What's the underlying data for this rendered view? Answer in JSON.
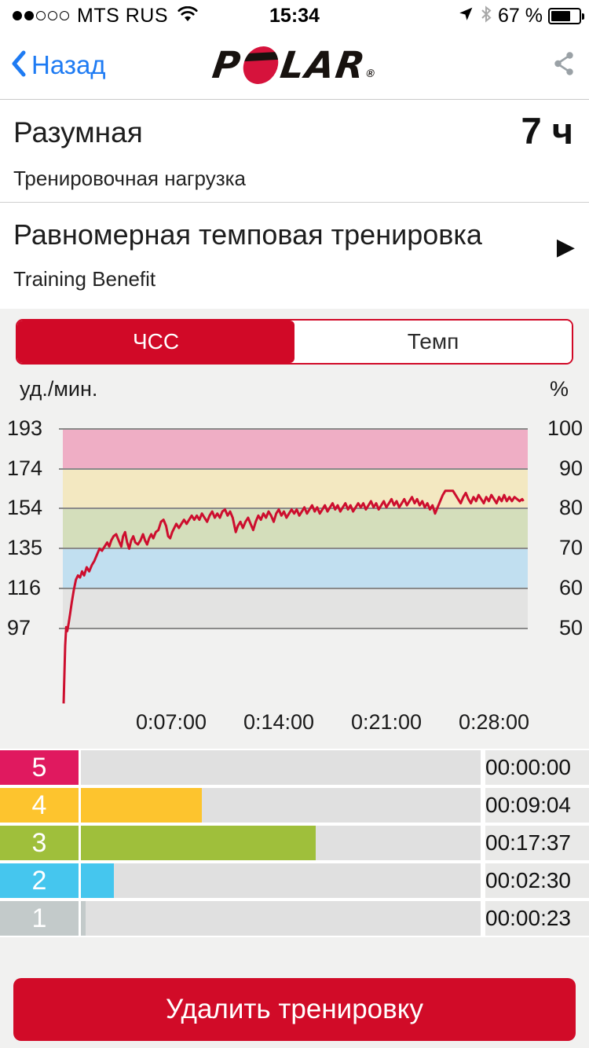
{
  "status_bar": {
    "signal_filled": 2,
    "signal_total": 5,
    "carrier": "MTS RUS",
    "time": "15:34",
    "battery_text": "67 %",
    "battery_level": 0.67
  },
  "nav": {
    "back_label": "Назад",
    "logo_p": "P",
    "logo_lar": "LAR",
    "logo_reg": "®"
  },
  "summary": {
    "title": "Разумная",
    "value": "7 ч",
    "subtitle": "Тренировочная нагрузка"
  },
  "benefit": {
    "title": "Равномерная темповая тренировка",
    "subtitle": "Training Benefit",
    "arrow": "▶"
  },
  "tabs": [
    {
      "label": "ЧСС",
      "selected": true
    },
    {
      "label": "Темп",
      "selected": false
    }
  ],
  "chart_data": {
    "type": "line",
    "title": "Heart rate curve with heart-rate zones",
    "left_axis_unit": "уд./мин.",
    "right_axis_unit": "%",
    "left_ticks": [
      "193",
      "174",
      "154",
      "135",
      "116",
      "97"
    ],
    "right_ticks": [
      "100",
      "90",
      "80",
      "70",
      "60",
      "50"
    ],
    "tick_percents": [
      100,
      90,
      80,
      70,
      60,
      50
    ],
    "x_ticks": [
      "0:07:00",
      "0:14:00",
      "0:21:00",
      "0:28:00"
    ],
    "x_tick_seconds": [
      420,
      840,
      1260,
      1680
    ],
    "x_range_seconds": [
      0,
      1800
    ],
    "max_hr_bpm": 193,
    "grid_color": "#8a8a8a",
    "line_color": "#cd0e2e",
    "zone_bands": [
      {
        "zone": 5,
        "from_pct": 90,
        "to_pct": 100,
        "color": "#efaec5"
      },
      {
        "zone": 4,
        "from_pct": 80,
        "to_pct": 90,
        "color": "#f3e8c1"
      },
      {
        "zone": 3,
        "from_pct": 70,
        "to_pct": 80,
        "color": "#d4debb"
      },
      {
        "zone": 2,
        "from_pct": 60,
        "to_pct": 70,
        "color": "#c1dff0"
      },
      {
        "zone": 1,
        "from_pct": 50,
        "to_pct": 60,
        "color": "#e3e3e2"
      }
    ],
    "series": {
      "name": "heart_rate_bpm",
      "points": [
        [
          0,
          60
        ],
        [
          6,
          88
        ],
        [
          10,
          97
        ],
        [
          14,
          95
        ],
        [
          20,
          99
        ],
        [
          26,
          104
        ],
        [
          32,
          109
        ],
        [
          40,
          115
        ],
        [
          48,
          120
        ],
        [
          56,
          122
        ],
        [
          64,
          121
        ],
        [
          72,
          124
        ],
        [
          80,
          122
        ],
        [
          90,
          126
        ],
        [
          100,
          124
        ],
        [
          110,
          127
        ],
        [
          120,
          129
        ],
        [
          130,
          132
        ],
        [
          140,
          135
        ],
        [
          150,
          134
        ],
        [
          160,
          136
        ],
        [
          170,
          138
        ],
        [
          178,
          136
        ],
        [
          186,
          139
        ],
        [
          195,
          141
        ],
        [
          205,
          142
        ],
        [
          215,
          139
        ],
        [
          225,
          136
        ],
        [
          232,
          141
        ],
        [
          240,
          143
        ],
        [
          248,
          138
        ],
        [
          256,
          135
        ],
        [
          264,
          139
        ],
        [
          272,
          141
        ],
        [
          280,
          138
        ],
        [
          290,
          137
        ],
        [
          300,
          139
        ],
        [
          310,
          142
        ],
        [
          318,
          139
        ],
        [
          326,
          137
        ],
        [
          334,
          140
        ],
        [
          342,
          142
        ],
        [
          350,
          140
        ],
        [
          360,
          143
        ],
        [
          370,
          144
        ],
        [
          380,
          148
        ],
        [
          390,
          149
        ],
        [
          400,
          146
        ],
        [
          408,
          141
        ],
        [
          416,
          140
        ],
        [
          424,
          143
        ],
        [
          432,
          145
        ],
        [
          440,
          147
        ],
        [
          450,
          145
        ],
        [
          460,
          147
        ],
        [
          470,
          149
        ],
        [
          480,
          147
        ],
        [
          490,
          149
        ],
        [
          500,
          151
        ],
        [
          510,
          149
        ],
        [
          520,
          151
        ],
        [
          530,
          149
        ],
        [
          540,
          152
        ],
        [
          550,
          150
        ],
        [
          560,
          148
        ],
        [
          570,
          151
        ],
        [
          580,
          153
        ],
        [
          590,
          150
        ],
        [
          600,
          152
        ],
        [
          610,
          150
        ],
        [
          620,
          153
        ],
        [
          630,
          154
        ],
        [
          640,
          151
        ],
        [
          650,
          153
        ],
        [
          660,
          150
        ],
        [
          672,
          143
        ],
        [
          680,
          146
        ],
        [
          690,
          148
        ],
        [
          700,
          145
        ],
        [
          710,
          148
        ],
        [
          720,
          150
        ],
        [
          730,
          147
        ],
        [
          740,
          144
        ],
        [
          750,
          148
        ],
        [
          760,
          151
        ],
        [
          770,
          149
        ],
        [
          780,
          152
        ],
        [
          790,
          150
        ],
        [
          800,
          153
        ],
        [
          810,
          151
        ],
        [
          820,
          148
        ],
        [
          830,
          152
        ],
        [
          840,
          154
        ],
        [
          850,
          151
        ],
        [
          860,
          153
        ],
        [
          870,
          150
        ],
        [
          880,
          152
        ],
        [
          890,
          154
        ],
        [
          900,
          152
        ],
        [
          910,
          154
        ],
        [
          920,
          151
        ],
        [
          930,
          153
        ],
        [
          940,
          155
        ],
        [
          950,
          152
        ],
        [
          960,
          154
        ],
        [
          970,
          156
        ],
        [
          980,
          153
        ],
        [
          990,
          155
        ],
        [
          1000,
          152
        ],
        [
          1010,
          154
        ],
        [
          1020,
          156
        ],
        [
          1030,
          153
        ],
        [
          1040,
          155
        ],
        [
          1050,
          157
        ],
        [
          1060,
          154
        ],
        [
          1070,
          156
        ],
        [
          1080,
          153
        ],
        [
          1090,
          155
        ],
        [
          1100,
          157
        ],
        [
          1110,
          154
        ],
        [
          1120,
          156
        ],
        [
          1130,
          153
        ],
        [
          1140,
          155
        ],
        [
          1150,
          157
        ],
        [
          1160,
          155
        ],
        [
          1170,
          157
        ],
        [
          1180,
          154
        ],
        [
          1190,
          156
        ],
        [
          1200,
          158
        ],
        [
          1210,
          155
        ],
        [
          1220,
          157
        ],
        [
          1230,
          154
        ],
        [
          1240,
          156
        ],
        [
          1250,
          158
        ],
        [
          1260,
          155
        ],
        [
          1270,
          157
        ],
        [
          1280,
          159
        ],
        [
          1290,
          156
        ],
        [
          1300,
          158
        ],
        [
          1310,
          155
        ],
        [
          1320,
          157
        ],
        [
          1330,
          159
        ],
        [
          1340,
          156
        ],
        [
          1350,
          158
        ],
        [
          1360,
          160
        ],
        [
          1370,
          157
        ],
        [
          1380,
          159
        ],
        [
          1390,
          156
        ],
        [
          1400,
          158
        ],
        [
          1410,
          155
        ],
        [
          1420,
          157
        ],
        [
          1430,
          154
        ],
        [
          1440,
          156
        ],
        [
          1450,
          152
        ],
        [
          1460,
          155
        ],
        [
          1470,
          158
        ],
        [
          1480,
          161
        ],
        [
          1490,
          163
        ],
        [
          1505,
          163
        ],
        [
          1520,
          163
        ],
        [
          1530,
          161
        ],
        [
          1540,
          159
        ],
        [
          1550,
          157
        ],
        [
          1560,
          160
        ],
        [
          1570,
          162
        ],
        [
          1580,
          159
        ],
        [
          1590,
          157
        ],
        [
          1600,
          160
        ],
        [
          1610,
          158
        ],
        [
          1620,
          161
        ],
        [
          1630,
          159
        ],
        [
          1640,
          157
        ],
        [
          1650,
          160
        ],
        [
          1660,
          158
        ],
        [
          1670,
          161
        ],
        [
          1680,
          159
        ],
        [
          1690,
          157
        ],
        [
          1700,
          160
        ],
        [
          1710,
          158
        ],
        [
          1720,
          161
        ],
        [
          1730,
          158
        ],
        [
          1740,
          160
        ],
        [
          1750,
          158
        ],
        [
          1760,
          160
        ],
        [
          1770,
          159
        ],
        [
          1780,
          158
        ],
        [
          1790,
          159
        ],
        [
          1795,
          158
        ]
      ]
    }
  },
  "zone_table": {
    "scale_seconds": 1800,
    "rows": [
      {
        "zone": "5",
        "time": "00:00:00",
        "seconds": 0,
        "color": "#e0195f"
      },
      {
        "zone": "4",
        "time": "00:09:04",
        "seconds": 544,
        "color": "#fdc42e"
      },
      {
        "zone": "3",
        "time": "00:17:37",
        "seconds": 1057,
        "color": "#9fbf3b"
      },
      {
        "zone": "2",
        "time": "00:02:30",
        "seconds": 150,
        "color": "#45c6ee"
      },
      {
        "zone": "1",
        "time": "00:00:23",
        "seconds": 23,
        "color": "#c3caca"
      }
    ]
  },
  "delete_button": {
    "label": "Удалить тренировку"
  },
  "colors": {
    "accent_red": "#d10927",
    "button_red": "#d10b28",
    "ios_blue": "#1e7bf3",
    "icon_gray": "#9aa1a6",
    "page_gray": "#f1f1f0"
  }
}
